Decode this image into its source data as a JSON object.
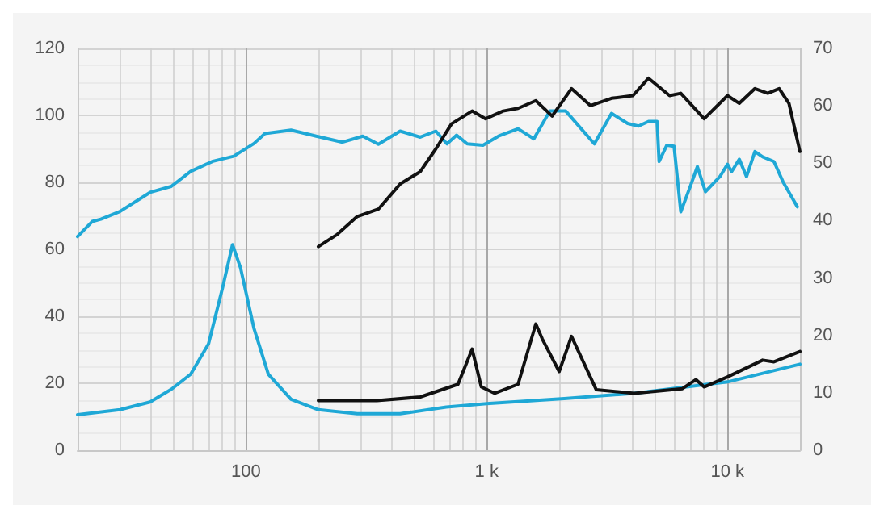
{
  "chart_data": {
    "type": "line",
    "log": "x",
    "grid": true,
    "marker": "none",
    "line_style": "solid",
    "xlim": [
      20,
      20000
    ],
    "xticks": [
      100,
      {
        "value": 1000,
        "label": "1 k"
      },
      {
        "value": 10000,
        "label": "10 k"
      }
    ],
    "ylim": [
      0,
      120
    ],
    "yticks": [
      0,
      20,
      40,
      60,
      80,
      100,
      120
    ],
    "y2lim": [
      0,
      70
    ],
    "y2ticks": [
      0,
      10,
      20,
      30,
      40,
      50,
      60,
      70
    ],
    "series": [
      {
        "color": "#1fa8d6",
        "x": [
          20,
          23,
          25,
          30,
          40,
          49,
          59,
          73,
          89,
          108,
          120,
          154,
          196,
          252,
          306,
          355,
          437,
          530,
          615,
          684,
          750,
          830,
          965,
          1120,
          1350,
          1570,
          1830,
          2130,
          2470,
          2800,
          3300,
          3850,
          4270,
          4700,
          5100,
          5200,
          5600,
          6000,
          6400,
          7000,
          7500,
          8100,
          9300,
          10000,
          10400,
          11200,
          12000,
          13000,
          14000,
          15600,
          17000,
          19500
        ],
        "values": [
          63.8,
          68.3,
          69,
          71.3,
          77,
          78.8,
          83.3,
          86.3,
          87.8,
          91.6,
          94.6,
          95.6,
          93.8,
          92,
          93.8,
          91.4,
          95.3,
          93.5,
          95.3,
          91.5,
          94.1,
          91.5,
          91.1,
          93.8,
          96,
          93,
          101.3,
          101.3,
          96,
          91.5,
          100.6,
          97.6,
          96.8,
          98.2,
          98.2,
          86.2,
          91.1,
          90.8,
          71.2,
          78.7,
          84.7,
          77.2,
          81.7,
          85.4,
          83.2,
          86.9,
          81.7,
          89.2,
          87.6,
          86.2,
          80.2,
          72.7
        ]
      },
      {
        "color": "#111111",
        "x": [
          200,
          240,
          290,
          355,
          437,
          530,
          615,
          715,
          870,
          990,
          1170,
          1350,
          1600,
          1870,
          2250,
          2700,
          3300,
          4050,
          4700,
          5750,
          6400,
          8000,
          10000,
          11200,
          13000,
          14700,
          16400,
          18000,
          20000
        ],
        "values": [
          60.8,
          64.5,
          69.8,
          72,
          79.5,
          83.2,
          90,
          97.5,
          101.3,
          99,
          101.3,
          102.1,
          104.4,
          99.8,
          108,
          102.9,
          105.1,
          105.9,
          111.1,
          105.9,
          106.6,
          99,
          105.9,
          103.6,
          108,
          106.6,
          108,
          103.6,
          89.2
        ]
      },
      {
        "color": "#1fa8d6",
        "x": [
          20,
          30,
          40,
          49,
          59,
          70,
          80,
          88,
          95,
          108,
          124,
          154,
          200,
          290,
          437,
          680,
          1000,
          2100,
          4100,
          10000,
          20000
        ],
        "values": [
          10.6,
          12.1,
          14.4,
          18.2,
          22.7,
          31.8,
          48.5,
          61.4,
          54.5,
          36.4,
          22.7,
          15.2,
          12.1,
          10.9,
          10.9,
          12.9,
          13.9,
          15.4,
          17,
          20.4,
          25.7
        ]
      },
      {
        "color": "#111111",
        "x": [
          200,
          350,
          530,
          760,
          870,
          950,
          1080,
          1350,
          1600,
          1700,
          2000,
          2250,
          2850,
          4100,
          6500,
          7400,
          8000,
          10000,
          14000,
          15600,
          20000
        ],
        "values": [
          14.8,
          14.8,
          15.9,
          19.7,
          30.2,
          18.9,
          17,
          19.7,
          37.7,
          33.3,
          23.5,
          34,
          18.1,
          17,
          18.4,
          21.1,
          18.9,
          21.9,
          26.9,
          26.4,
          29.5
        ]
      }
    ]
  }
}
